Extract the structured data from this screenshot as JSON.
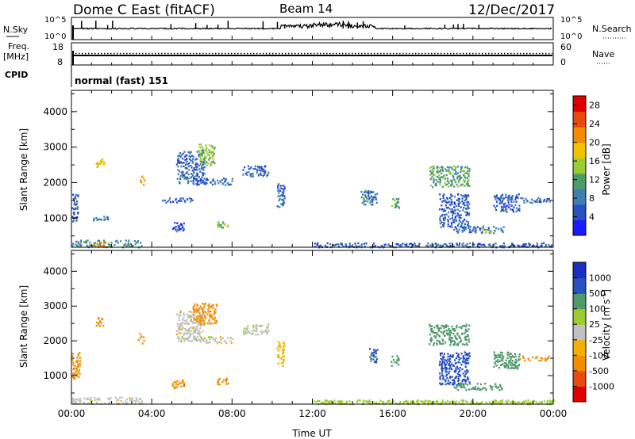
{
  "header": {
    "station": "Dome C East (fitACF)",
    "beam": "Beam 14",
    "date": "12/Dec/2017"
  },
  "status_panel": {
    "nsky_label": "N.Sky",
    "nsky_ticks": [
      "10^5",
      "10^0"
    ],
    "nsearch_label": "N.Search",
    "nsearch_ticks": [
      "10^5",
      "10^0"
    ],
    "freq_label": "Freq.",
    "freq_unit": "[MHz]",
    "freq_ticks": [
      "18",
      "8"
    ],
    "nave_label": "Nave",
    "nave_ticks": [
      "60",
      "0"
    ],
    "cpid_label": "CPID",
    "cpid_value": "normal (fast) 151"
  },
  "colors": {
    "power_scale": [
      "#1a1aff",
      "#2a4fbf",
      "#3f7fb0",
      "#4f9a6a",
      "#9acd32",
      "#f2c200",
      "#f28c00",
      "#e84a10",
      "#e00000"
    ],
    "velocity_scale": [
      "#e00000",
      "#e84a10",
      "#f28c00",
      "#f2b100",
      "#c0c0c0",
      "#9acd32",
      "#4f9a6a",
      "#2a4fbf",
      "#1a2fbf"
    ]
  },
  "chart_data": [
    {
      "type": "heatmap",
      "name": "power",
      "xlabel": "",
      "ylabel": "Slant Range [km]",
      "x_ticks": [
        "00:00",
        "04:00",
        "08:00",
        "12:00",
        "16:00",
        "20:00",
        "00:00"
      ],
      "x_range_hours": [
        0,
        24
      ],
      "y_ticks": [
        "1000",
        "2000",
        "3000",
        "4000"
      ],
      "ylim_km": [
        180,
        4600
      ],
      "colorbar": {
        "label": "Power [dB]",
        "ticks": [
          "4",
          "8",
          "12",
          "16",
          "20",
          "24",
          "28"
        ],
        "range": [
          0,
          30
        ]
      },
      "echoes": [
        {
          "t0": 0.0,
          "t1": 0.3,
          "r0": 900,
          "r1": 1700,
          "v": 6
        },
        {
          "t0": 0.0,
          "t1": 3.5,
          "r0": 200,
          "r1": 400,
          "v": 10
        },
        {
          "t0": 1.0,
          "t1": 1.8,
          "r0": 200,
          "r1": 380,
          "v": 22
        },
        {
          "t0": 1.0,
          "t1": 1.8,
          "r0": 950,
          "r1": 1080,
          "v": 7
        },
        {
          "t0": 1.2,
          "t1": 1.6,
          "r0": 2450,
          "r1": 2700,
          "v": 18
        },
        {
          "t0": 3.4,
          "t1": 3.6,
          "r0": 1950,
          "r1": 2250,
          "v": 22
        },
        {
          "t0": 4.5,
          "t1": 6.0,
          "r0": 1450,
          "r1": 1600,
          "v": 6
        },
        {
          "t0": 5.0,
          "t1": 5.6,
          "r0": 650,
          "r1": 900,
          "v": 5
        },
        {
          "t0": 5.2,
          "t1": 6.6,
          "r0": 2000,
          "r1": 2900,
          "v": 7
        },
        {
          "t0": 6.3,
          "t1": 7.1,
          "r0": 2500,
          "r1": 3100,
          "v": 14
        },
        {
          "t0": 7.2,
          "t1": 7.8,
          "r0": 750,
          "r1": 950,
          "v": 14
        },
        {
          "t0": 6.0,
          "t1": 8.0,
          "r0": 1950,
          "r1": 2150,
          "v": 6
        },
        {
          "t0": 8.5,
          "t1": 9.8,
          "r0": 2200,
          "r1": 2500,
          "v": 6
        },
        {
          "t0": 10.2,
          "t1": 10.6,
          "r0": 1300,
          "r1": 2000,
          "v": 6
        },
        {
          "t0": 14.4,
          "t1": 15.2,
          "r0": 1400,
          "r1": 1800,
          "v": 8
        },
        {
          "t0": 15.9,
          "t1": 16.3,
          "r0": 1300,
          "r1": 1600,
          "v": 12
        },
        {
          "t0": 17.8,
          "t1": 19.8,
          "r0": 1900,
          "r1": 2500,
          "v": 12
        },
        {
          "t0": 18.3,
          "t1": 19.8,
          "r0": 750,
          "r1": 1700,
          "v": 6
        },
        {
          "t0": 19.0,
          "t1": 21.5,
          "r0": 600,
          "r1": 800,
          "v": 7
        },
        {
          "t0": 20.4,
          "t1": 20.9,
          "r0": 600,
          "r1": 750,
          "v": 16
        },
        {
          "t0": 21.0,
          "t1": 22.3,
          "r0": 1200,
          "r1": 1700,
          "v": 6
        },
        {
          "t0": 22.3,
          "t1": 23.8,
          "r0": 1450,
          "r1": 1600,
          "v": 6
        },
        {
          "t0": 12.0,
          "t1": 24.0,
          "r0": 200,
          "r1": 320,
          "v": 6
        }
      ]
    },
    {
      "type": "heatmap",
      "name": "velocity",
      "xlabel": "Time UT",
      "ylabel": "Slant Range [km]",
      "x_ticks": [
        "00:00",
        "04:00",
        "08:00",
        "12:00",
        "16:00",
        "20:00",
        "00:00"
      ],
      "x_range_hours": [
        0,
        24
      ],
      "y_ticks": [
        "1000",
        "2000",
        "3000",
        "4000"
      ],
      "ylim_km": [
        180,
        4600
      ],
      "colorbar": {
        "label": "Velocity [m s",
        "label_sup": "-1",
        "label_end": "]",
        "ticks": [
          "1000",
          "500",
          "100",
          "25",
          "-25",
          "-100",
          "-500",
          "-1000"
        ],
        "range": [
          -1000,
          1000
        ]
      },
      "echoes": [
        {
          "t0": 0.0,
          "t1": 0.4,
          "r0": 900,
          "r1": 1700,
          "v": -150
        },
        {
          "t0": 0.0,
          "t1": 3.5,
          "r0": 200,
          "r1": 400,
          "v": 0
        },
        {
          "t0": 1.2,
          "t1": 1.6,
          "r0": 2450,
          "r1": 2700,
          "v": -200
        },
        {
          "t0": 3.3,
          "t1": 3.6,
          "r0": 1950,
          "r1": 2250,
          "v": -300
        },
        {
          "t0": 5.0,
          "t1": 5.6,
          "r0": 650,
          "r1": 900,
          "v": -400
        },
        {
          "t0": 5.2,
          "t1": 6.6,
          "r0": 2000,
          "r1": 2900,
          "v": 0
        },
        {
          "t0": 6.0,
          "t1": 7.2,
          "r0": 2500,
          "r1": 3100,
          "v": -200
        },
        {
          "t0": 7.2,
          "t1": 7.8,
          "r0": 750,
          "r1": 950,
          "v": -400
        },
        {
          "t0": 6.5,
          "t1": 8.0,
          "r0": 1950,
          "r1": 2150,
          "v": 0
        },
        {
          "t0": 8.5,
          "t1": 9.8,
          "r0": 2200,
          "r1": 2500,
          "v": 10
        },
        {
          "t0": 10.2,
          "t1": 10.6,
          "r0": 1300,
          "r1": 2000,
          "v": -60
        },
        {
          "t0": 14.8,
          "t1": 15.2,
          "r0": 1400,
          "r1": 1800,
          "v": 600
        },
        {
          "t0": 15.9,
          "t1": 16.3,
          "r0": 1300,
          "r1": 1600,
          "v": 300
        },
        {
          "t0": 17.8,
          "t1": 19.8,
          "r0": 1900,
          "r1": 2500,
          "v": 200
        },
        {
          "t0": 18.3,
          "t1": 19.8,
          "r0": 750,
          "r1": 1700,
          "v": 700
        },
        {
          "t0": 19.0,
          "t1": 21.5,
          "r0": 600,
          "r1": 800,
          "v": 200
        },
        {
          "t0": 21.0,
          "t1": 22.3,
          "r0": 1200,
          "r1": 1700,
          "v": 150
        },
        {
          "t0": 22.3,
          "t1": 23.8,
          "r0": 1450,
          "r1": 1600,
          "v": -200
        },
        {
          "t0": 12.0,
          "t1": 24.0,
          "r0": 200,
          "r1": 320,
          "v": 60
        }
      ]
    }
  ]
}
